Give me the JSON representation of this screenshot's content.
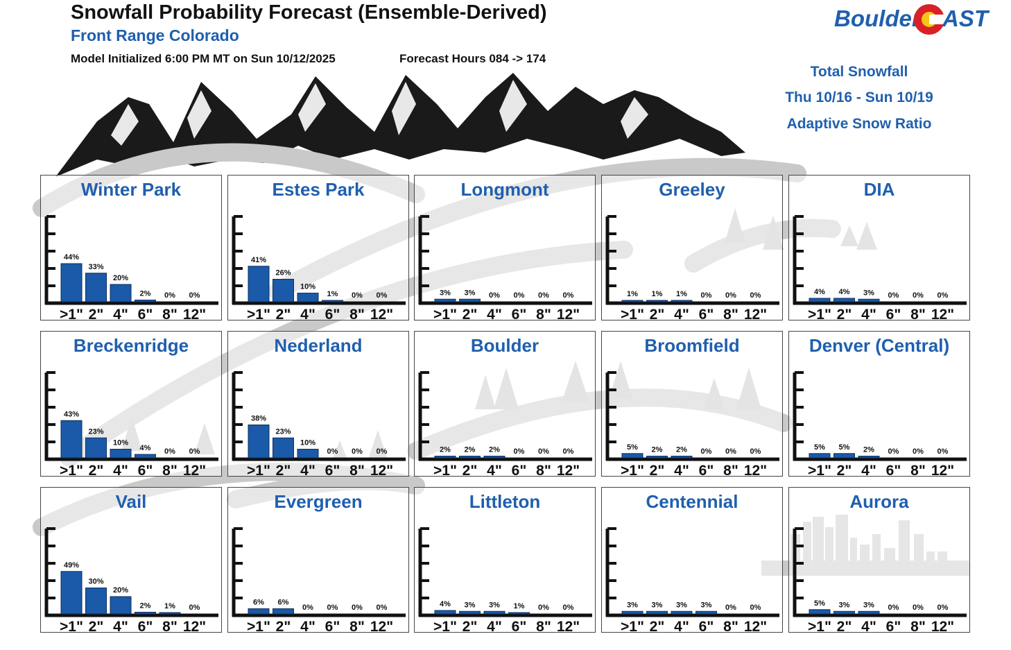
{
  "header": {
    "title": "Snowfall Probability Forecast (Ensemble-Derived)",
    "subtitle": "Front Range Colorado",
    "model_init": "Model Initialized 6:00 PM MT on Sun 10/12/2025",
    "forecast_hours": "Forecast Hours 084 -> 174"
  },
  "logo": {
    "text_left": "Boulder",
    "text_right": "AST"
  },
  "info": {
    "line1": "Total Snowfall",
    "line2": "Thu 10/16 - Sun 10/19",
    "line3": "Adaptive Snow Ratio"
  },
  "colors": {
    "bar": "#1a5aa8",
    "title": "#1f5fae",
    "axis": "#111111"
  },
  "chart_data": {
    "type": "bar",
    "categories": [
      ">1\"",
      "2\"",
      "4\"",
      "6\"",
      "8\"",
      "12\""
    ],
    "ylim": [
      0,
      100
    ],
    "value_suffix": "%",
    "panels": [
      {
        "name": "Winter Park",
        "values": [
          44,
          33,
          20,
          2,
          0,
          0
        ]
      },
      {
        "name": "Estes Park",
        "values": [
          41,
          26,
          10,
          1,
          0,
          0
        ]
      },
      {
        "name": "Longmont",
        "values": [
          3,
          3,
          0,
          0,
          0,
          0
        ]
      },
      {
        "name": "Greeley",
        "values": [
          1,
          1,
          1,
          0,
          0,
          0
        ]
      },
      {
        "name": "DIA",
        "values": [
          4,
          4,
          3,
          0,
          0,
          0
        ]
      },
      {
        "name": "Breckenridge",
        "values": [
          43,
          23,
          10,
          4,
          0,
          0
        ]
      },
      {
        "name": "Nederland",
        "values": [
          38,
          23,
          10,
          0,
          0,
          0
        ]
      },
      {
        "name": "Boulder",
        "values": [
          2,
          2,
          2,
          0,
          0,
          0
        ]
      },
      {
        "name": "Broomfield",
        "values": [
          5,
          2,
          2,
          0,
          0,
          0
        ]
      },
      {
        "name": "Denver (Central)",
        "values": [
          5,
          5,
          2,
          0,
          0,
          0
        ]
      },
      {
        "name": "Vail",
        "values": [
          49,
          30,
          20,
          2,
          1,
          0
        ]
      },
      {
        "name": "Evergreen",
        "values": [
          6,
          6,
          0,
          0,
          0,
          0
        ]
      },
      {
        "name": "Littleton",
        "values": [
          4,
          3,
          3,
          1,
          0,
          0
        ]
      },
      {
        "name": "Centennial",
        "values": [
          3,
          3,
          3,
          3,
          0,
          0
        ]
      },
      {
        "name": "Aurora",
        "values": [
          5,
          3,
          3,
          0,
          0,
          0
        ]
      }
    ]
  }
}
